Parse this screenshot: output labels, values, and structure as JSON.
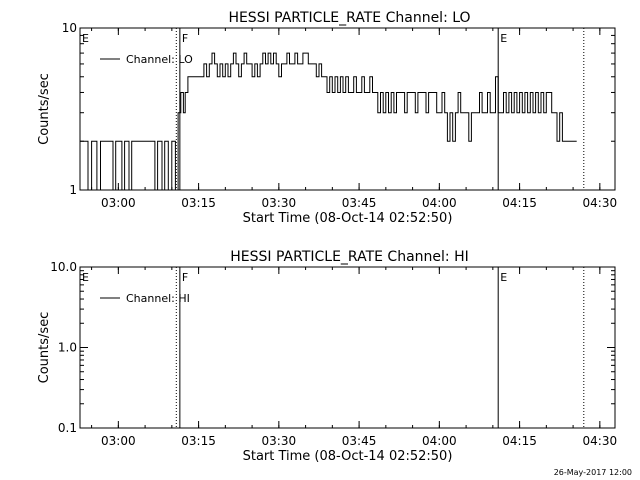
{
  "footer_date": "26-May-2017 12:00",
  "chart_data": [
    {
      "type": "line",
      "title": "HESSI PARTICLE_RATE Channel: LO",
      "xlabel": "Start Time (08-Oct-14 02:52:50)",
      "ylabel": "Counts/sec",
      "yscale": "log",
      "ylim": [
        1,
        10
      ],
      "ytick_labels": [
        "1",
        "10"
      ],
      "yticks": [
        1,
        10
      ],
      "xlim": [
        "02:52:50",
        "04:32:50"
      ],
      "xticks": [
        "03:00",
        "03:15",
        "03:30",
        "03:45",
        "04:00",
        "04:15",
        "04:30"
      ],
      "legend": {
        "label": "Channel: LO",
        "position": "top-left"
      },
      "markers": [
        {
          "label": "E",
          "time": "02:52:50",
          "style": "solid"
        },
        {
          "label": "F",
          "time": "03:11:30",
          "style": "solid"
        },
        {
          "label": "",
          "time": "03:10:50",
          "style": "dotted"
        },
        {
          "label": "E",
          "time": "04:11:00",
          "style": "solid"
        },
        {
          "label": "",
          "time": "04:27:00",
          "style": "dotted"
        }
      ],
      "series": [
        {
          "name": "Channel: LO",
          "points": [
            [
              "02:52:50",
              2
            ],
            [
              "02:54:20",
              1
            ],
            [
              "02:55:00",
              2
            ],
            [
              "02:56:00",
              1
            ],
            [
              "02:56:40",
              2
            ],
            [
              "02:58:30",
              2
            ],
            [
              "02:59:00",
              1
            ],
            [
              "02:59:30",
              2
            ],
            [
              "03:00:00",
              2
            ],
            [
              "03:00:40",
              1
            ],
            [
              "03:01:10",
              2
            ],
            [
              "03:02:00",
              1
            ],
            [
              "03:02:30",
              2
            ],
            [
              "03:06:30",
              2
            ],
            [
              "03:06:50",
              1
            ],
            [
              "03:07:20",
              2
            ],
            [
              "03:08:10",
              1
            ],
            [
              "03:08:40",
              2
            ],
            [
              "03:09:20",
              1
            ],
            [
              "03:10:00",
              2
            ],
            [
              "03:10:40",
              1
            ],
            [
              "03:11:10",
              3
            ],
            [
              "03:11:40",
              4
            ],
            [
              "03:12:10",
              3
            ],
            [
              "03:12:30",
              4
            ],
            [
              "03:13:00",
              5
            ],
            [
              "03:15:30",
              5
            ],
            [
              "03:16:00",
              6
            ],
            [
              "03:16:30",
              5
            ],
            [
              "03:17:00",
              6
            ],
            [
              "03:17:30",
              7
            ],
            [
              "03:18:00",
              6
            ],
            [
              "03:18:30",
              5
            ],
            [
              "03:19:00",
              6
            ],
            [
              "03:19:30",
              5
            ],
            [
              "03:20:00",
              6
            ],
            [
              "03:20:30",
              5
            ],
            [
              "03:21:00",
              6
            ],
            [
              "03:21:30",
              7
            ],
            [
              "03:22:00",
              6
            ],
            [
              "03:22:30",
              5
            ],
            [
              "03:23:00",
              6
            ],
            [
              "03:23:30",
              7
            ],
            [
              "03:24:00",
              6
            ],
            [
              "03:24:30",
              6
            ],
            [
              "03:25:00",
              5
            ],
            [
              "03:25:30",
              6
            ],
            [
              "03:26:00",
              5
            ],
            [
              "03:26:30",
              6
            ],
            [
              "03:27:00",
              7
            ],
            [
              "03:27:30",
              6
            ],
            [
              "03:28:00",
              7
            ],
            [
              "03:28:30",
              6
            ],
            [
              "03:29:00",
              7
            ],
            [
              "03:29:30",
              6
            ],
            [
              "03:30:00",
              5
            ],
            [
              "03:30:30",
              6
            ],
            [
              "03:31:00",
              6
            ],
            [
              "03:31:30",
              7
            ],
            [
              "03:32:00",
              6
            ],
            [
              "03:32:30",
              6
            ],
            [
              "03:33:00",
              7
            ],
            [
              "03:33:30",
              6
            ],
            [
              "03:34:00",
              6
            ],
            [
              "03:34:30",
              7
            ],
            [
              "03:35:00",
              7
            ],
            [
              "03:35:30",
              6
            ],
            [
              "03:36:00",
              6
            ],
            [
              "03:36:30",
              6
            ],
            [
              "03:37:00",
              5
            ],
            [
              "03:37:30",
              6
            ],
            [
              "03:38:00",
              5
            ],
            [
              "03:38:30",
              5
            ],
            [
              "03:39:00",
              4
            ],
            [
              "03:39:30",
              5
            ],
            [
              "03:40:00",
              4
            ],
            [
              "03:40:30",
              5
            ],
            [
              "03:41:00",
              4
            ],
            [
              "03:41:30",
              5
            ],
            [
              "03:42:00",
              4
            ],
            [
              "03:42:30",
              5
            ],
            [
              "03:43:00",
              4
            ],
            [
              "03:43:30",
              4
            ],
            [
              "03:44:00",
              5
            ],
            [
              "03:44:30",
              4
            ],
            [
              "03:45:00",
              4
            ],
            [
              "03:45:30",
              5
            ],
            [
              "03:46:00",
              4
            ],
            [
              "03:46:30",
              4
            ],
            [
              "03:47:00",
              5
            ],
            [
              "03:47:30",
              4
            ],
            [
              "03:48:00",
              4
            ],
            [
              "03:48:30",
              3
            ],
            [
              "03:49:00",
              4
            ],
            [
              "03:49:30",
              3
            ],
            [
              "03:50:00",
              4
            ],
            [
              "03:50:30",
              3
            ],
            [
              "03:51:00",
              4
            ],
            [
              "03:51:30",
              3
            ],
            [
              "03:52:00",
              4
            ],
            [
              "03:53:00",
              4
            ],
            [
              "03:53:30",
              3
            ],
            [
              "03:54:00",
              4
            ],
            [
              "03:55:00",
              4
            ],
            [
              "03:55:30",
              3
            ],
            [
              "03:56:00",
              4
            ],
            [
              "03:57:00",
              4
            ],
            [
              "03:57:30",
              3
            ],
            [
              "03:58:00",
              4
            ],
            [
              "03:59:00",
              4
            ],
            [
              "03:59:30",
              3
            ],
            [
              "04:00:00",
              3
            ],
            [
              "04:00:30",
              4
            ],
            [
              "04:01:00",
              3
            ],
            [
              "04:01:30",
              2
            ],
            [
              "04:02:00",
              3
            ],
            [
              "04:02:30",
              2
            ],
            [
              "04:03:00",
              3
            ],
            [
              "04:03:30",
              4
            ],
            [
              "04:04:00",
              3
            ],
            [
              "04:05:00",
              3
            ],
            [
              "04:05:30",
              2
            ],
            [
              "04:06:00",
              3
            ],
            [
              "04:07:00",
              3
            ],
            [
              "04:07:30",
              4
            ],
            [
              "04:08:00",
              3
            ],
            [
              "04:08:30",
              3
            ],
            [
              "04:09:00",
              4
            ],
            [
              "04:09:30",
              3
            ],
            [
              "04:10:00",
              3
            ],
            [
              "04:10:30",
              5
            ],
            [
              "04:11:00",
              3
            ],
            [
              "04:12:00",
              4
            ],
            [
              "04:12:30",
              3
            ],
            [
              "04:13:00",
              4
            ],
            [
              "04:13:30",
              3
            ],
            [
              "04:14:00",
              4
            ],
            [
              "04:14:30",
              3
            ],
            [
              "04:15:00",
              4
            ],
            [
              "04:15:30",
              3
            ],
            [
              "04:16:00",
              4
            ],
            [
              "04:16:30",
              3
            ],
            [
              "04:17:00",
              4
            ],
            [
              "04:17:30",
              3
            ],
            [
              "04:18:00",
              4
            ],
            [
              "04:18:30",
              3
            ],
            [
              "04:19:00",
              4
            ],
            [
              "04:19:30",
              3
            ],
            [
              "04:20:00",
              4
            ],
            [
              "04:20:30",
              4
            ],
            [
              "04:21:00",
              3
            ],
            [
              "04:21:30",
              3
            ],
            [
              "04:22:00",
              2
            ],
            [
              "04:22:30",
              3
            ],
            [
              "04:23:00",
              2
            ],
            [
              "04:23:30",
              2
            ],
            [
              "04:25:40",
              2
            ]
          ]
        }
      ]
    },
    {
      "type": "line",
      "title": "HESSI PARTICLE_RATE Channel: HI",
      "xlabel": "Start Time (08-Oct-14 02:52:50)",
      "ylabel": "Counts/sec",
      "yscale": "log",
      "ylim": [
        0.1,
        10
      ],
      "ytick_labels": [
        "0.1",
        "1.0",
        "10.0"
      ],
      "yticks": [
        0.1,
        1,
        10
      ],
      "xlim": [
        "02:52:50",
        "04:32:50"
      ],
      "xticks": [
        "03:00",
        "03:15",
        "03:30",
        "03:45",
        "04:00",
        "04:15",
        "04:30"
      ],
      "legend": {
        "label": "Channel: HI",
        "position": "top-left"
      },
      "markers": [
        {
          "label": "E",
          "time": "02:52:50",
          "style": "solid"
        },
        {
          "label": "F",
          "time": "03:11:30",
          "style": "solid"
        },
        {
          "label": "",
          "time": "03:10:50",
          "style": "dotted"
        },
        {
          "label": "E",
          "time": "04:11:00",
          "style": "solid"
        },
        {
          "label": "",
          "time": "04:27:00",
          "style": "dotted"
        }
      ],
      "series": [
        {
          "name": "Channel: HI",
          "points": []
        }
      ]
    }
  ]
}
